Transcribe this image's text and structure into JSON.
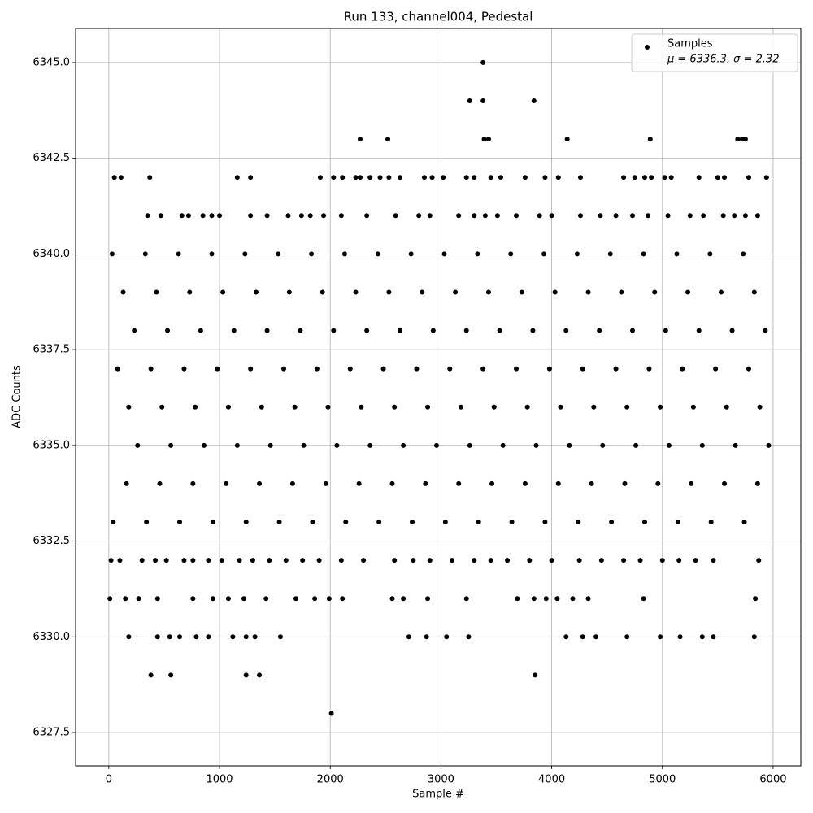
{
  "chart_data": {
    "type": "scatter",
    "title": "Run 133, channel004, Pedestal",
    "x_label": "Sample #",
    "y_label": "ADC Counts",
    "xlim": [
      -300,
      6250
    ],
    "ylim": [
      6326.63,
      6345.89
    ],
    "xticks": [
      0,
      1000,
      2000,
      3000,
      4000,
      5000,
      6000
    ],
    "yticks": [
      {
        "value": 6327.5,
        "label": "6327.5"
      },
      {
        "value": 6330,
        "label": "6330.0"
      },
      {
        "value": 6332.5,
        "label": "6332.5"
      },
      {
        "value": 6335,
        "label": "6335.0"
      },
      {
        "value": 6337.5,
        "label": "6337.5"
      },
      {
        "value": 6340,
        "label": "6340.0"
      },
      {
        "value": 6342.5,
        "label": "6342.5"
      },
      {
        "value": 6345,
        "label": "6345.0"
      }
    ],
    "grid": true,
    "legend": "upper right",
    "legend_note": "μ = 6336.3, σ = 2.32",
    "series": [
      {
        "name": "Samples",
        "color": "#000000",
        "x": [
          3380,
          3260,
          3380,
          3840,
          2270,
          2520,
          3390,
          3430,
          4140,
          4890,
          5680,
          5720,
          5750,
          50,
          110,
          370,
          1160,
          1280,
          1910,
          2030,
          2110,
          2230,
          2270,
          2360,
          2450,
          2530,
          2630,
          2850,
          2920,
          3020,
          3230,
          3300,
          3450,
          3540,
          3760,
          3940,
          4060,
          4260,
          4650,
          4750,
          4840,
          4900,
          5020,
          5080,
          5330,
          5500,
          5560,
          5780,
          5940,
          350,
          470,
          660,
          720,
          850,
          930,
          1000,
          1280,
          1430,
          1620,
          1740,
          1820,
          1940,
          2100,
          2330,
          2590,
          2800,
          2900,
          3160,
          3300,
          3400,
          3510,
          3680,
          3890,
          4000,
          4260,
          4440,
          4580,
          4730,
          4870,
          5050,
          5250,
          5370,
          5550,
          5650,
          5750,
          5860,
          30,
          330,
          630,
          930,
          1230,
          1530,
          1830,
          2130,
          2430,
          2730,
          3030,
          3330,
          3630,
          3930,
          4230,
          4530,
          4830,
          5130,
          5430,
          5730,
          130,
          430,
          730,
          1030,
          1330,
          1630,
          1930,
          2230,
          2530,
          2830,
          3130,
          3430,
          3730,
          4030,
          4330,
          4630,
          4930,
          5230,
          5530,
          5830,
          230,
          530,
          830,
          1130,
          1430,
          1730,
          2030,
          2330,
          2630,
          2930,
          3230,
          3530,
          3830,
          4130,
          4430,
          4730,
          5030,
          5330,
          5630,
          5930,
          80,
          380,
          680,
          980,
          1280,
          1580,
          1880,
          2180,
          2480,
          2780,
          3080,
          3380,
          3680,
          3980,
          4280,
          4580,
          4880,
          5180,
          5480,
          5780,
          180,
          480,
          780,
          1080,
          1380,
          1680,
          1980,
          2280,
          2580,
          2880,
          3180,
          3480,
          3780,
          4080,
          4380,
          4680,
          4980,
          5280,
          5580,
          5880,
          260,
          560,
          860,
          1160,
          1460,
          1760,
          2060,
          2360,
          2660,
          2960,
          3260,
          3560,
          3860,
          4160,
          4460,
          4760,
          5060,
          5360,
          5660,
          5960,
          160,
          460,
          760,
          1060,
          1360,
          1660,
          1960,
          2260,
          2560,
          2860,
          3160,
          3460,
          3760,
          4060,
          4360,
          4660,
          4960,
          5260,
          5560,
          5860,
          40,
          340,
          640,
          940,
          1240,
          1540,
          1840,
          2140,
          2440,
          2740,
          3040,
          3340,
          3640,
          3940,
          4240,
          4540,
          4840,
          5140,
          5440,
          5740,
          20,
          100,
          300,
          420,
          520,
          680,
          760,
          900,
          1020,
          1180,
          1300,
          1450,
          1600,
          1750,
          1900,
          2100,
          2300,
          2580,
          2750,
          2900,
          3100,
          3300,
          3450,
          3600,
          3800,
          4000,
          4250,
          4450,
          4650,
          4800,
          5000,
          5150,
          5300,
          5460,
          5870,
          10,
          150,
          270,
          440,
          760,
          940,
          1080,
          1220,
          1420,
          1690,
          1860,
          1990,
          2110,
          2560,
          2660,
          2880,
          3230,
          3690,
          3840,
          3950,
          4050,
          4190,
          4330,
          4830,
          5840,
          180,
          440,
          550,
          640,
          790,
          900,
          1120,
          1240,
          1320,
          1550,
          2710,
          2870,
          3050,
          3250,
          4130,
          4280,
          4400,
          4680,
          4980,
          5160,
          5360,
          5460,
          5830,
          380,
          560,
          1240,
          1360,
          3850,
          2010
        ],
        "values": [
          6345,
          6344,
          6344,
          6344,
          6343,
          6343,
          6343,
          6343,
          6343,
          6343,
          6343,
          6343,
          6343,
          6342,
          6342,
          6342,
          6342,
          6342,
          6342,
          6342,
          6342,
          6342,
          6342,
          6342,
          6342,
          6342,
          6342,
          6342,
          6342,
          6342,
          6342,
          6342,
          6342,
          6342,
          6342,
          6342,
          6342,
          6342,
          6342,
          6342,
          6342,
          6342,
          6342,
          6342,
          6342,
          6342,
          6342,
          6342,
          6342,
          6341,
          6341,
          6341,
          6341,
          6341,
          6341,
          6341,
          6341,
          6341,
          6341,
          6341,
          6341,
          6341,
          6341,
          6341,
          6341,
          6341,
          6341,
          6341,
          6341,
          6341,
          6341,
          6341,
          6341,
          6341,
          6341,
          6341,
          6341,
          6341,
          6341,
          6341,
          6341,
          6341,
          6341,
          6341,
          6341,
          6341,
          6340,
          6340,
          6340,
          6340,
          6340,
          6340,
          6340,
          6340,
          6340,
          6340,
          6340,
          6340,
          6340,
          6340,
          6340,
          6340,
          6340,
          6340,
          6340,
          6340,
          6339,
          6339,
          6339,
          6339,
          6339,
          6339,
          6339,
          6339,
          6339,
          6339,
          6339,
          6339,
          6339,
          6339,
          6339,
          6339,
          6339,
          6339,
          6339,
          6339,
          6338,
          6338,
          6338,
          6338,
          6338,
          6338,
          6338,
          6338,
          6338,
          6338,
          6338,
          6338,
          6338,
          6338,
          6338,
          6338,
          6338,
          6338,
          6338,
          6338,
          6337,
          6337,
          6337,
          6337,
          6337,
          6337,
          6337,
          6337,
          6337,
          6337,
          6337,
          6337,
          6337,
          6337,
          6337,
          6337,
          6337,
          6337,
          6337,
          6337,
          6336,
          6336,
          6336,
          6336,
          6336,
          6336,
          6336,
          6336,
          6336,
          6336,
          6336,
          6336,
          6336,
          6336,
          6336,
          6336,
          6336,
          6336,
          6336,
          6336,
          6335,
          6335,
          6335,
          6335,
          6335,
          6335,
          6335,
          6335,
          6335,
          6335,
          6335,
          6335,
          6335,
          6335,
          6335,
          6335,
          6335,
          6335,
          6335,
          6335,
          6334,
          6334,
          6334,
          6334,
          6334,
          6334,
          6334,
          6334,
          6334,
          6334,
          6334,
          6334,
          6334,
          6334,
          6334,
          6334,
          6334,
          6334,
          6334,
          6334,
          6333,
          6333,
          6333,
          6333,
          6333,
          6333,
          6333,
          6333,
          6333,
          6333,
          6333,
          6333,
          6333,
          6333,
          6333,
          6333,
          6333,
          6333,
          6333,
          6333,
          6332,
          6332,
          6332,
          6332,
          6332,
          6332,
          6332,
          6332,
          6332,
          6332,
          6332,
          6332,
          6332,
          6332,
          6332,
          6332,
          6332,
          6332,
          6332,
          6332,
          6332,
          6332,
          6332,
          6332,
          6332,
          6332,
          6332,
          6332,
          6332,
          6332,
          6332,
          6332,
          6332,
          6332,
          6332,
          6331,
          6331,
          6331,
          6331,
          6331,
          6331,
          6331,
          6331,
          6331,
          6331,
          6331,
          6331,
          6331,
          6331,
          6331,
          6331,
          6331,
          6331,
          6331,
          6331,
          6331,
          6331,
          6331,
          6331,
          6331,
          6330,
          6330,
          6330,
          6330,
          6330,
          6330,
          6330,
          6330,
          6330,
          6330,
          6330,
          6330,
          6330,
          6330,
          6330,
          6330,
          6330,
          6330,
          6330,
          6330,
          6330,
          6330,
          6330,
          6329,
          6329,
          6329,
          6329,
          6329,
          6328
        ]
      }
    ]
  }
}
